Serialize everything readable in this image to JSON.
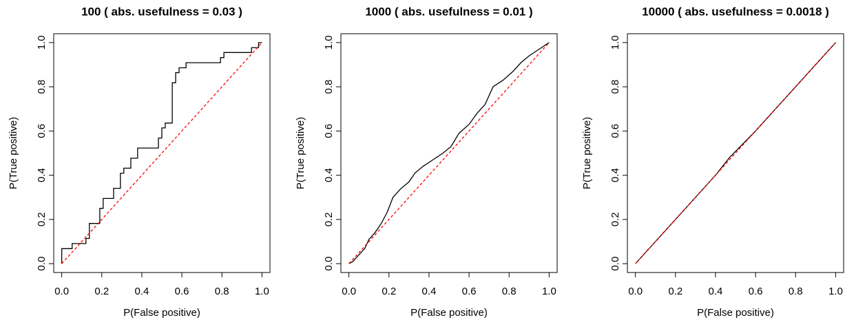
{
  "chart_data": [
    {
      "type": "line",
      "title": "100 ( abs. usefulness = 0.03 )",
      "xlabel": "P(False positive)",
      "ylabel": "P(True positive)",
      "xlim": [
        -0.04,
        1.04
      ],
      "ylim": [
        -0.04,
        1.04
      ],
      "xticks": [
        {
          "value": 0,
          "label": "0.0"
        },
        0.2,
        0.4,
        0.6,
        0.8,
        {
          "value": 1,
          "label": "1.0"
        }
      ],
      "yticks": [
        {
          "value": 0,
          "label": "0.0"
        },
        0.2,
        0.4,
        0.6,
        0.8,
        {
          "value": 1,
          "label": "1.0"
        }
      ],
      "series": [
        {
          "color": "#000000",
          "dash": false,
          "x": [
            0,
            0,
            0.052,
            0.052,
            0.121,
            0.121,
            0.138,
            0.138,
            0.19,
            0.19,
            0.207,
            0.207,
            0.259,
            0.259,
            0.293,
            0.293,
            0.31,
            0.31,
            0.345,
            0.345,
            0.379,
            0.379,
            0.483,
            0.483,
            0.5,
            0.5,
            0.517,
            0.517,
            0.552,
            0.552,
            0.569,
            0.569,
            0.586,
            0.586,
            0.621,
            0.621,
            0.793,
            0.793,
            0.81,
            0.81,
            0.948,
            0.948,
            0.983,
            0.983,
            1
          ],
          "values": [
            0,
            0.068,
            0.068,
            0.091,
            0.091,
            0.114,
            0.114,
            0.182,
            0.182,
            0.25,
            0.25,
            0.295,
            0.295,
            0.341,
            0.341,
            0.409,
            0.409,
            0.432,
            0.432,
            0.477,
            0.477,
            0.523,
            0.523,
            0.568,
            0.568,
            0.614,
            0.614,
            0.636,
            0.636,
            0.818,
            0.818,
            0.864,
            0.864,
            0.886,
            0.886,
            0.909,
            0.909,
            0.932,
            0.932,
            0.955,
            0.955,
            0.977,
            0.977,
            1,
            1
          ]
        },
        {
          "color": "#ff0000",
          "dash": true,
          "x": [
            0,
            1
          ],
          "values": [
            0,
            1
          ]
        }
      ]
    },
    {
      "type": "line",
      "title": "1000 ( abs. usefulness = 0.01 )",
      "xlabel": "P(False positive)",
      "ylabel": "P(True positive)",
      "xlim": [
        -0.04,
        1.04
      ],
      "ylim": [
        -0.04,
        1.04
      ],
      "xticks": [
        {
          "value": 0,
          "label": "0.0"
        },
        0.2,
        0.4,
        0.6,
        0.8,
        {
          "value": 1,
          "label": "1.0"
        }
      ],
      "yticks": [
        {
          "value": 0,
          "label": "0.0"
        },
        0.2,
        0.4,
        0.6,
        0.8,
        {
          "value": 1,
          "label": "1.0"
        }
      ],
      "series": [
        {
          "color": "#000000",
          "dash": false,
          "x": [
            0,
            0.02,
            0.05,
            0.08,
            0.1,
            0.13,
            0.16,
            0.19,
            0.22,
            0.26,
            0.3,
            0.33,
            0.37,
            0.42,
            0.47,
            0.51,
            0.55,
            0.6,
            0.64,
            0.68,
            0.72,
            0.77,
            0.82,
            0.86,
            0.9,
            0.95,
            1
          ],
          "values": [
            0,
            0.01,
            0.04,
            0.07,
            0.11,
            0.14,
            0.18,
            0.23,
            0.3,
            0.34,
            0.37,
            0.41,
            0.44,
            0.47,
            0.5,
            0.53,
            0.59,
            0.63,
            0.68,
            0.72,
            0.8,
            0.83,
            0.87,
            0.91,
            0.94,
            0.97,
            1
          ]
        },
        {
          "color": "#ff0000",
          "dash": true,
          "x": [
            0,
            1
          ],
          "values": [
            0,
            1
          ]
        }
      ]
    },
    {
      "type": "line",
      "title": "10000 ( abs. usefulness = 0.0018 )",
      "xlabel": "P(False positive)",
      "ylabel": "P(True positive)",
      "xlim": [
        -0.04,
        1.04
      ],
      "ylim": [
        -0.04,
        1.04
      ],
      "xticks": [
        {
          "value": 0,
          "label": "0.0"
        },
        0.2,
        0.4,
        0.6,
        0.8,
        {
          "value": 1,
          "label": "1.0"
        }
      ],
      "yticks": [
        {
          "value": 0,
          "label": "0.0"
        },
        0.2,
        0.4,
        0.6,
        0.8,
        {
          "value": 1,
          "label": "1.0"
        }
      ],
      "series": [
        {
          "color": "#000000",
          "dash": false,
          "x": [
            0,
            0.1,
            0.2,
            0.3,
            0.4,
            0.47,
            0.6,
            0.7,
            0.8,
            0.9,
            1
          ],
          "values": [
            0,
            0.1,
            0.2,
            0.3,
            0.4,
            0.48,
            0.6,
            0.7,
            0.8,
            0.9,
            1
          ]
        },
        {
          "color": "#ff0000",
          "dash": true,
          "x": [
            0,
            1
          ],
          "values": [
            0,
            1
          ]
        }
      ]
    }
  ]
}
